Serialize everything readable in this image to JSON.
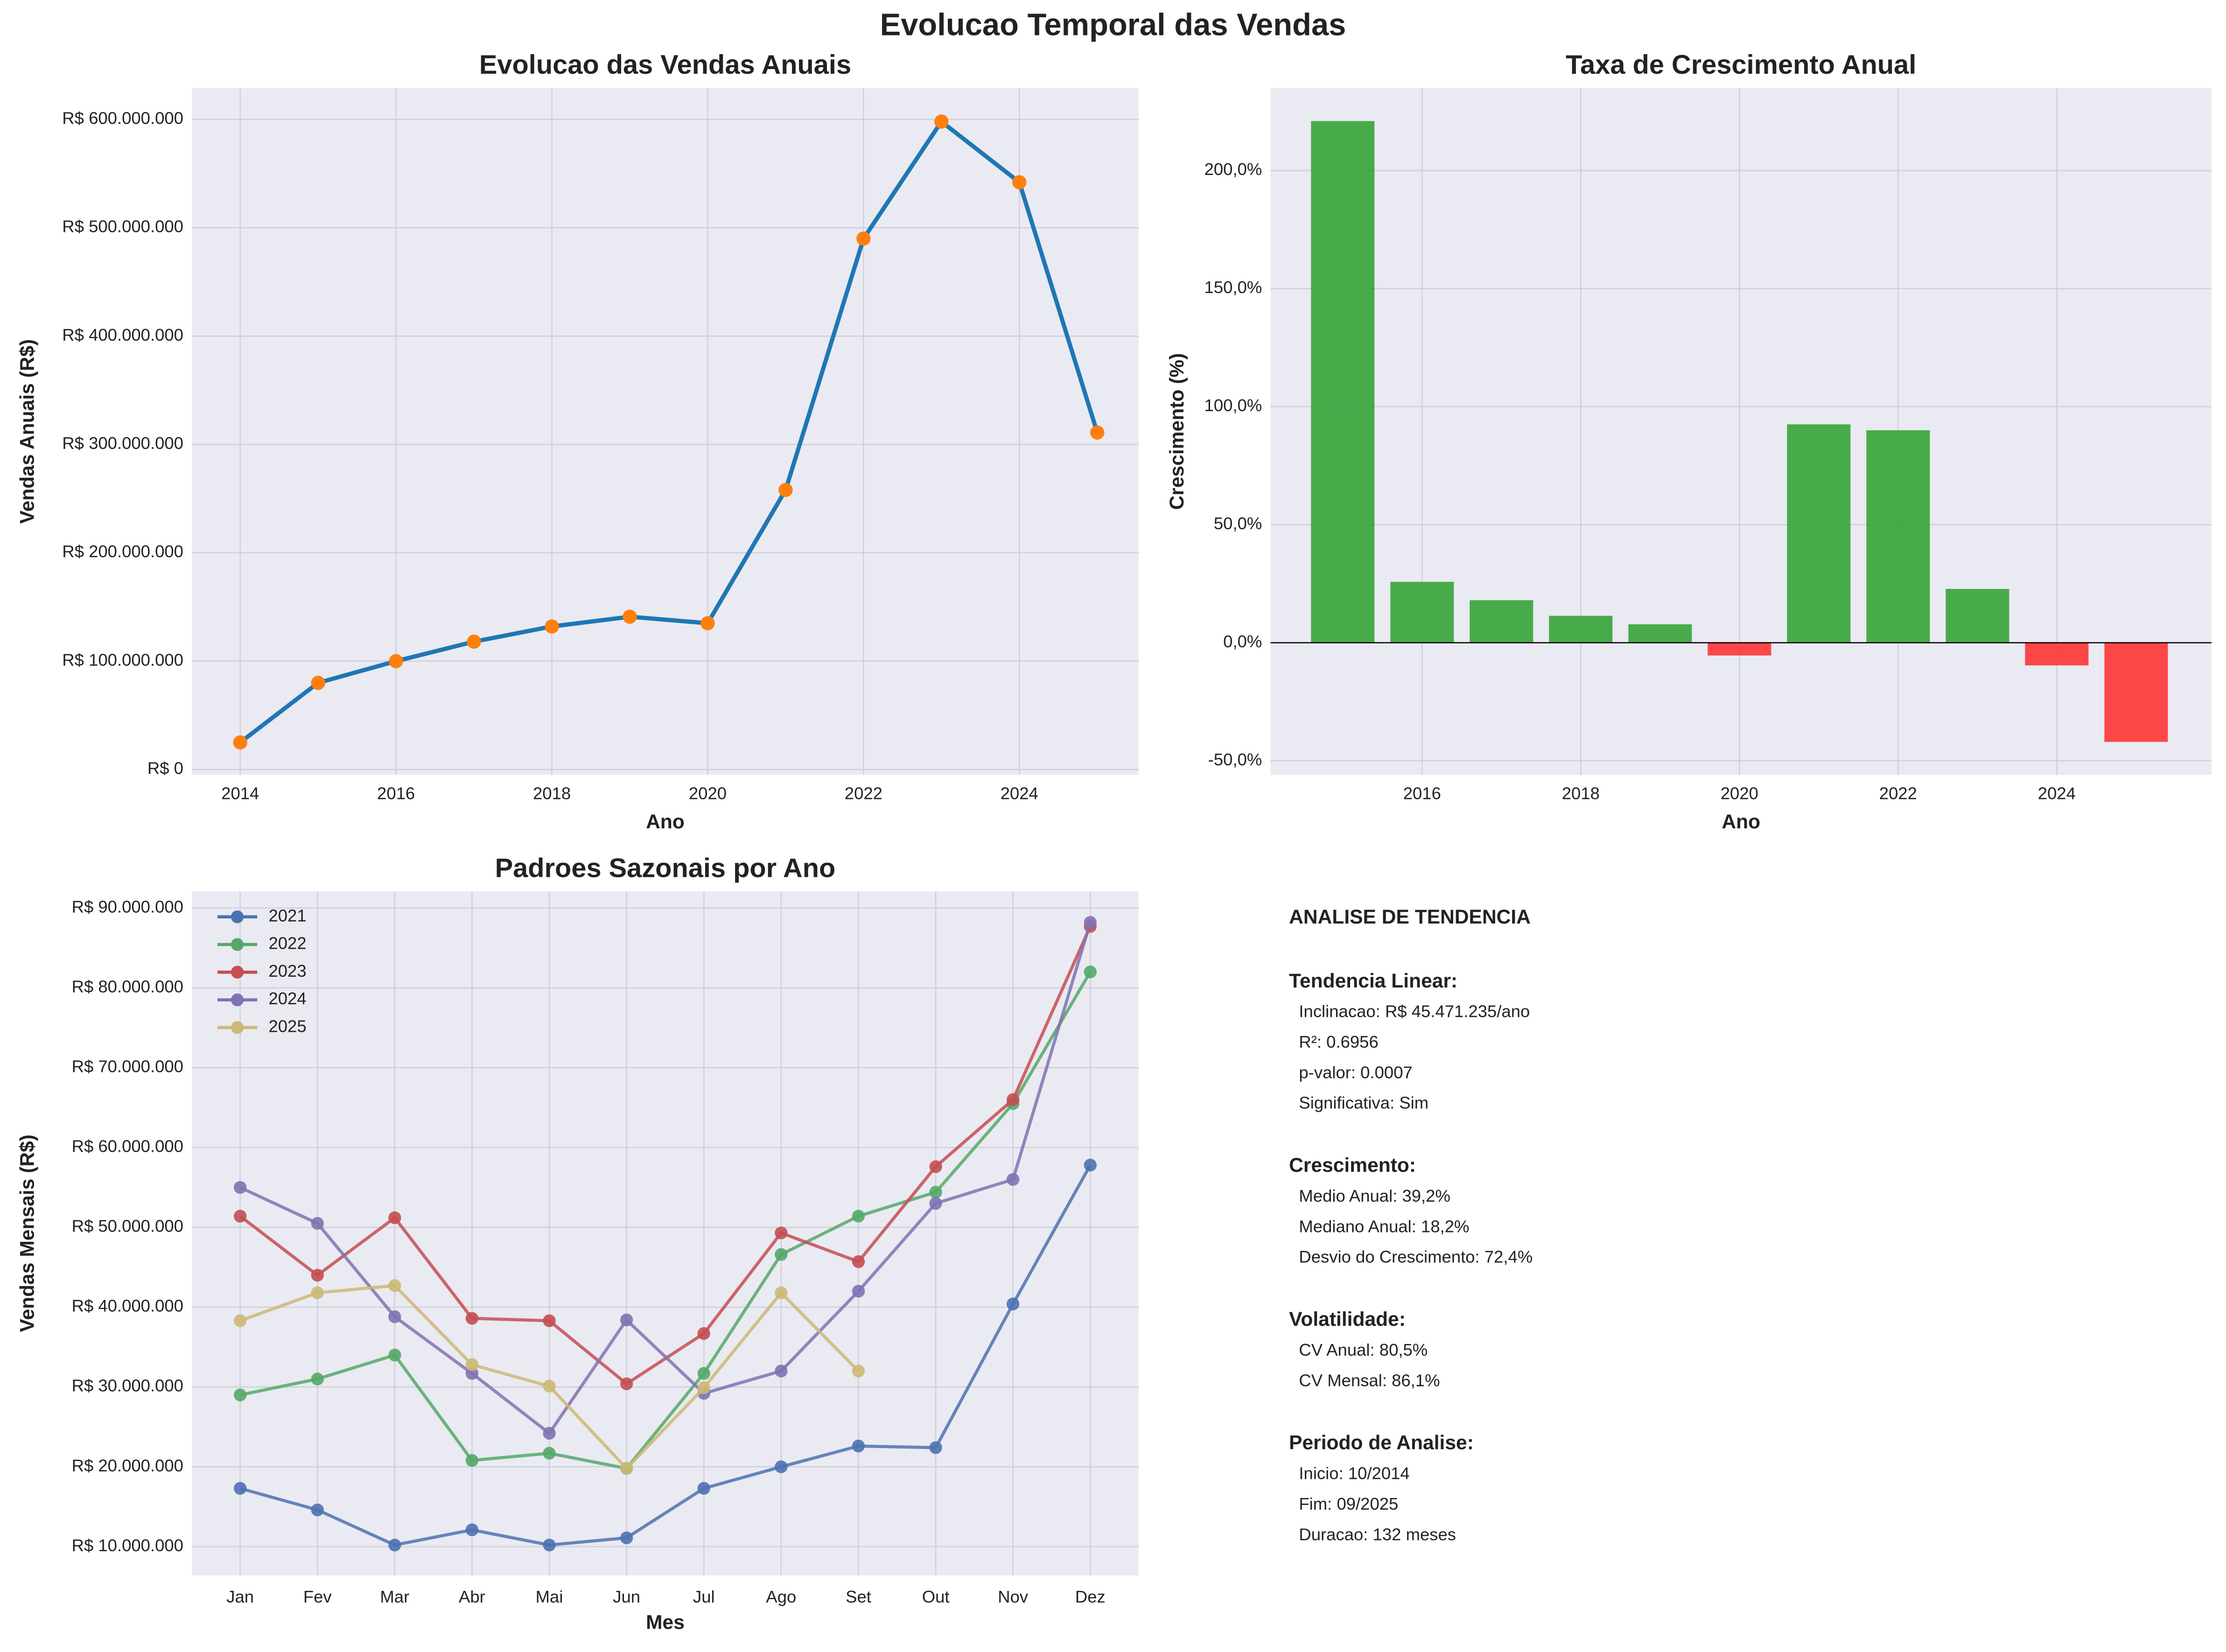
{
  "title": "Evolucao Temporal das Vendas",
  "chart_data": [
    {
      "type": "line",
      "title": "Evolucao das Vendas Anuais",
      "xlabel": "Ano",
      "ylabel": "Vendas Anuais (R$)",
      "x": [
        2014,
        2015,
        2016,
        2017,
        2018,
        2019,
        2020,
        2021,
        2022,
        2023,
        2024,
        2025
      ],
      "values": [
        25000000,
        80000000,
        100000000,
        118000000,
        132000000,
        141000000,
        135000000,
        258000000,
        490000000,
        598000000,
        542000000,
        311000000
      ],
      "color": "#1f77b4",
      "marker_color": "#ff7f0e",
      "xlim": [
        2013.38,
        2025.53
      ],
      "xticks": [
        2014,
        2016,
        2018,
        2020,
        2022,
        2024
      ],
      "ylim": [
        -5000000,
        629000000
      ],
      "yticks": [
        {
          "value": 0,
          "label": "R$ 0"
        },
        {
          "value": 100000000,
          "label": "R$ 100.000.000"
        },
        {
          "value": 200000000,
          "label": "R$ 200.000.000"
        },
        {
          "value": 300000000,
          "label": "R$ 300.000.000"
        },
        {
          "value": 400000000,
          "label": "R$ 400.000.000"
        },
        {
          "value": 500000000,
          "label": "R$ 500.000.000"
        },
        {
          "value": 600000000,
          "label": "R$ 600.000.000"
        }
      ],
      "grid": true
    },
    {
      "type": "bar",
      "title": "Taxa de Crescimento Anual",
      "xlabel": "Ano",
      "ylabel": "Crescimento (%)",
      "x": [
        2015,
        2016,
        2017,
        2018,
        2019,
        2020,
        2021,
        2022,
        2023,
        2024,
        2025
      ],
      "values": [
        221,
        25.8,
        18,
        11.4,
        7.8,
        -5.4,
        92.5,
        90,
        22.8,
        -9.6,
        -42
      ],
      "positive_color": "#2ca02c",
      "negative_color": "#ff2a2a",
      "xlim": [
        2014.09,
        2025.95
      ],
      "xticks": [
        2016,
        2018,
        2020,
        2022,
        2024
      ],
      "ylim": [
        -56,
        235
      ],
      "yticks": [
        {
          "value": -50,
          "label": "-50,0%"
        },
        {
          "value": 0,
          "label": "0,0%"
        },
        {
          "value": 50,
          "label": "50,0%"
        },
        {
          "value": 100,
          "label": "100,0%"
        },
        {
          "value": 150,
          "label": "150,0%"
        },
        {
          "value": 200,
          "label": "200,0%"
        }
      ],
      "grid": true
    },
    {
      "type": "multiline",
      "title": "Padroes Sazonais por Ano",
      "xlabel": "Mes",
      "ylabel": "Vendas Mensais (R$)",
      "categories": [
        "Jan",
        "Fev",
        "Mar",
        "Abr",
        "Mai",
        "Jun",
        "Jul",
        "Ago",
        "Set",
        "Out",
        "Nov",
        "Dez"
      ],
      "series": [
        {
          "name": "2021",
          "color": "#4c72b0",
          "values": [
            17300000,
            14600000,
            10200000,
            12100000,
            10200000,
            11100000,
            17300000,
            20000000,
            22600000,
            22400000,
            40400000,
            57800000
          ]
        },
        {
          "name": "2022",
          "color": "#55a868",
          "values": [
            29000000,
            31000000,
            34000000,
            20800000,
            21700000,
            19800000,
            31700000,
            46600000,
            51400000,
            54400000,
            65500000,
            82000000
          ]
        },
        {
          "name": "2023",
          "color": "#c44e52",
          "values": [
            51400000,
            44000000,
            51200000,
            38600000,
            38300000,
            30400000,
            36700000,
            49300000,
            45700000,
            57600000,
            66000000,
            87700000
          ]
        },
        {
          "name": "2024",
          "color": "#8172b2",
          "values": [
            55000000,
            50500000,
            38800000,
            31700000,
            24200000,
            38400000,
            29200000,
            32000000,
            42000000,
            53000000,
            56000000,
            88200000
          ]
        },
        {
          "name": "2025",
          "color": "#ccb974",
          "values": [
            38300000,
            41800000,
            42700000,
            32800000,
            30100000,
            19800000,
            29900000,
            41800000,
            32000000,
            null,
            null,
            null
          ]
        }
      ],
      "ylim": [
        6400000,
        92100000
      ],
      "yticks": [
        {
          "value": 10000000,
          "label": "R$ 10.000.000"
        },
        {
          "value": 20000000,
          "label": "R$ 20.000.000"
        },
        {
          "value": 30000000,
          "label": "R$ 30.000.000"
        },
        {
          "value": 40000000,
          "label": "R$ 40.000.000"
        },
        {
          "value": 50000000,
          "label": "R$ 50.000.000"
        },
        {
          "value": 60000000,
          "label": "R$ 60.000.000"
        },
        {
          "value": 70000000,
          "label": "R$ 70.000.000"
        },
        {
          "value": 80000000,
          "label": "R$ 80.000.000"
        },
        {
          "value": 90000000,
          "label": "R$ 90.000.000"
        }
      ],
      "grid": true,
      "legend": "upper left"
    }
  ],
  "analysis": {
    "title": "ANALISE DE TENDENCIA",
    "sections": [
      {
        "heading": "Tendencia Linear:",
        "lines": [
          "Inclinacao: R$ 45.471.235/ano",
          "R²: 0.6956",
          "p-valor: 0.0007",
          "Significativa: Sim"
        ]
      },
      {
        "heading": "Crescimento:",
        "lines": [
          "Medio Anual: 39,2%",
          "Mediano Anual: 18,2%",
          "Desvio do Crescimento: 72,4%"
        ]
      },
      {
        "heading": "Volatilidade:",
        "lines": [
          "CV Anual: 80,5%",
          "CV Mensal: 86,1%"
        ]
      },
      {
        "heading": "Periodo de Analise:",
        "lines": [
          "Inicio: 10/2014",
          "Fim: 09/2025",
          "Duracao: 132 meses"
        ]
      }
    ]
  }
}
